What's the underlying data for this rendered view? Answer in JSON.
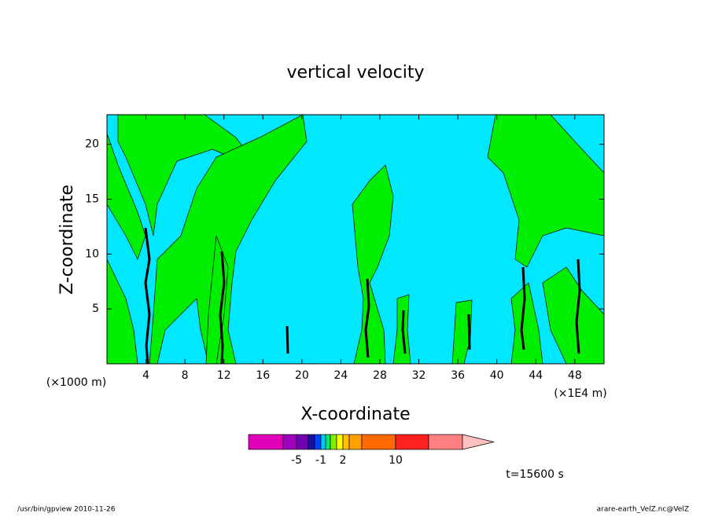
{
  "chart_data": {
    "type": "contour",
    "title": "vertical velocity",
    "x_label": "X-coordinate",
    "y_label": "Z-coordinate",
    "x_unit_note": "(×1000 m)",
    "x_unit_note_right": "(×1E4 m)",
    "xlim": [
      0,
      51
    ],
    "xticks": [
      4,
      8,
      12,
      16,
      20,
      24,
      28,
      32,
      36,
      40,
      44,
      48
    ],
    "ylim": [
      0,
      22.7
    ],
    "yticks": [
      5,
      10,
      15,
      20
    ],
    "colorbar_colors": [
      "#e000b8",
      "#a000c0",
      "#7000b0",
      "#1a10a0",
      "#0040ff",
      "#00c8ff",
      "#00e87a",
      "#80f000",
      "#ffff00",
      "#ffc000",
      "#ffa000",
      "#ff6a00",
      "#ff2020",
      "#ff8080",
      "#ffc0c0"
    ],
    "colorbar_ticks": [
      -5,
      -1,
      2,
      10
    ],
    "time_label": "t=15600 s",
    "footer_left": "/usr/bin/gpview   2010-11-26",
    "footer_right": "arare-earth_VelZ.nc@VelZ"
  }
}
